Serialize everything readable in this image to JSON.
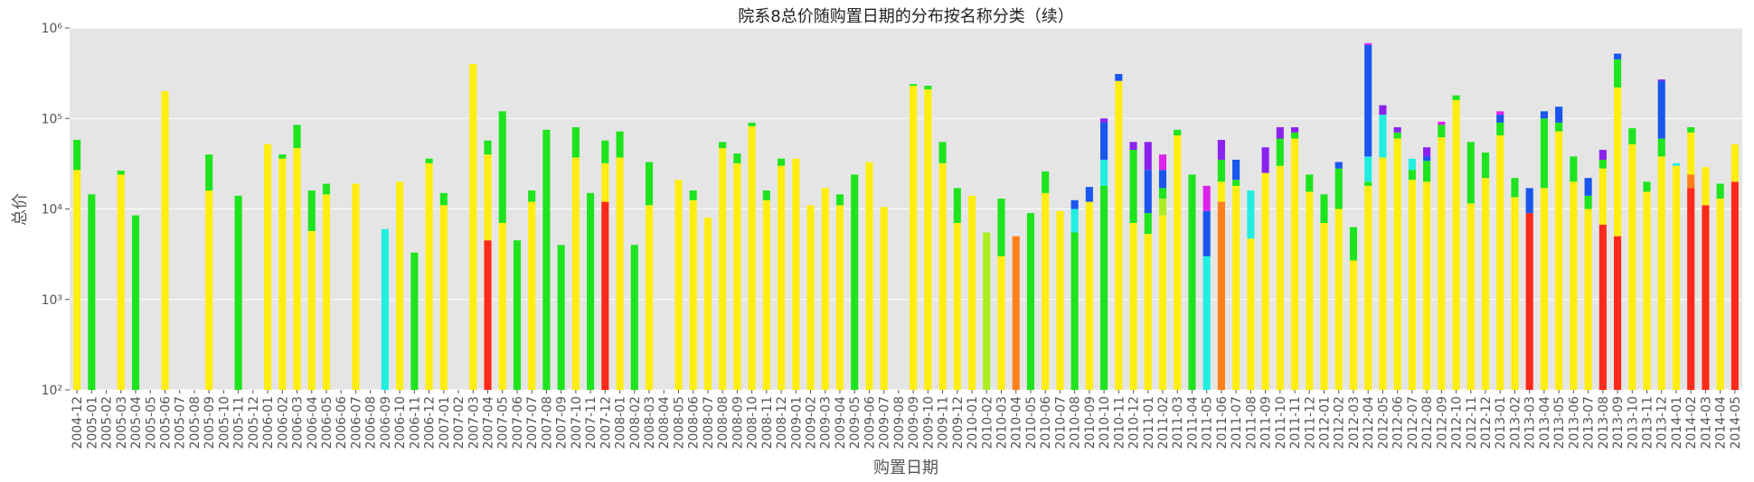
{
  "chart_data": {
    "type": "stacked_bar",
    "title": "院系8总价随购置日期的分布按名称分类（续）",
    "x_label": "购置日期",
    "y_label": "总价",
    "log_y": true,
    "grid": true,
    "ylim": [
      100,
      1000000
    ],
    "yticks": [
      {
        "value": 100,
        "label": "10²"
      },
      {
        "value": 1000,
        "label": "10³"
      },
      {
        "value": 10000,
        "label": "10⁴"
      },
      {
        "value": 100000,
        "label": "10⁵"
      },
      {
        "value": 1000000,
        "label": "10⁶"
      }
    ],
    "categories": [
      "2004-12",
      "2005-01",
      "2005-02",
      "2005-03",
      "2005-04",
      "2005-05",
      "2005-06",
      "2005-07",
      "2005-08",
      "2005-09",
      "2005-10",
      "2005-11",
      "2005-12",
      "2006-01",
      "2006-02",
      "2006-03",
      "2006-04",
      "2006-05",
      "2006-06",
      "2006-07",
      "2006-08",
      "2006-09",
      "2006-10",
      "2006-11",
      "2006-12",
      "2007-01",
      "2007-02",
      "2007-03",
      "2007-04",
      "2007-05",
      "2007-06",
      "2007-07",
      "2007-08",
      "2007-09",
      "2007-10",
      "2007-11",
      "2007-12",
      "2008-01",
      "2008-02",
      "2008-03",
      "2008-04",
      "2008-05",
      "2008-06",
      "2008-07",
      "2008-08",
      "2008-09",
      "2008-10",
      "2008-11",
      "2008-12",
      "2009-01",
      "2009-02",
      "2009-03",
      "2009-04",
      "2009-05",
      "2009-06",
      "2009-07",
      "2009-08",
      "2009-09",
      "2009-10",
      "2009-11",
      "2009-12",
      "2010-01",
      "2010-02",
      "2010-03",
      "2010-04",
      "2010-05",
      "2010-06",
      "2010-07",
      "2010-08",
      "2010-09",
      "2010-10",
      "2010-11",
      "2010-12",
      "2011-01",
      "2011-02",
      "2011-03",
      "2011-04",
      "2011-05",
      "2011-06",
      "2011-07",
      "2011-08",
      "2011-09",
      "2011-10",
      "2011-11",
      "2011-12",
      "2012-01",
      "2012-02",
      "2012-03",
      "2012-04",
      "2012-05",
      "2012-06",
      "2012-07",
      "2012-08",
      "2012-09",
      "2012-10",
      "2012-11",
      "2012-12",
      "2013-01",
      "2013-02",
      "2013-03",
      "2013-04",
      "2013-05",
      "2013-06",
      "2013-07",
      "2013-08",
      "2013-09",
      "2013-10",
      "2013-11",
      "2013-12",
      "2014-01",
      "2014-02",
      "2014-03",
      "2014-04",
      "2014-05"
    ],
    "series": [
      {
        "color": "#ff2a1a",
        "values": [
          0,
          0,
          0,
          0,
          0,
          0,
          0,
          0,
          0,
          0,
          0,
          0,
          0,
          0,
          0,
          0,
          0,
          0,
          0,
          0,
          0,
          0,
          0,
          0,
          0,
          0,
          0,
          0,
          4500,
          0,
          0,
          0,
          0,
          0,
          0,
          0,
          12000,
          0,
          0,
          0,
          0,
          0,
          0,
          0,
          0,
          0,
          0,
          0,
          0,
          0,
          0,
          0,
          0,
          0,
          0,
          0,
          0,
          0,
          0,
          0,
          0,
          0,
          0,
          0,
          0,
          0,
          0,
          0,
          0,
          0,
          0,
          0,
          0,
          0,
          0,
          0,
          0,
          0,
          0,
          0,
          0,
          0,
          0,
          0,
          0,
          0,
          0,
          0,
          0,
          0,
          0,
          0,
          0,
          0,
          0,
          0,
          0,
          0,
          0,
          9000,
          0,
          0,
          0,
          0,
          6700,
          5000,
          0,
          0,
          0,
          0,
          17000,
          11000,
          0,
          20000
        ]
      },
      {
        "color": "#ff7f1a",
        "values": [
          0,
          0,
          0,
          0,
          0,
          0,
          0,
          0,
          0,
          0,
          0,
          0,
          0,
          0,
          0,
          0,
          0,
          0,
          0,
          0,
          0,
          0,
          0,
          0,
          0,
          0,
          0,
          0,
          0,
          0,
          0,
          0,
          0,
          0,
          0,
          0,
          0,
          0,
          0,
          0,
          0,
          0,
          0,
          0,
          0,
          0,
          0,
          0,
          0,
          0,
          0,
          0,
          0,
          0,
          0,
          0,
          0,
          0,
          0,
          0,
          0,
          0,
          0,
          0,
          5000,
          0,
          0,
          0,
          0,
          0,
          0,
          0,
          0,
          0,
          0,
          0,
          0,
          0,
          12000,
          0,
          0,
          0,
          0,
          0,
          0,
          0,
          0,
          0,
          0,
          0,
          0,
          0,
          0,
          0,
          0,
          0,
          0,
          0,
          0,
          0,
          0,
          0,
          0,
          0,
          0,
          0,
          0,
          0,
          0,
          0,
          7000,
          0,
          0,
          0
        ]
      },
      {
        "color": "#ffee10",
        "values": [
          27000,
          0,
          0,
          24000,
          0,
          0,
          200000,
          0,
          0,
          16000,
          0,
          0,
          0,
          52000,
          36000,
          47000,
          5700,
          14500,
          0,
          19000,
          0,
          0,
          20000,
          0,
          32000,
          11000,
          0,
          400000,
          35500,
          7000,
          0,
          12000,
          0,
          0,
          37000,
          0,
          20000,
          37000,
          0,
          11000,
          0,
          21000,
          12500,
          8000,
          47000,
          32000,
          82000,
          12500,
          30000,
          36000,
          11000,
          17000,
          11000,
          0,
          33000,
          10500,
          0,
          230000,
          210000,
          32000,
          7000,
          14000,
          0,
          3000,
          0,
          0,
          15000,
          9500,
          0,
          12000,
          0,
          260000,
          7000,
          5300,
          8500,
          65000,
          0,
          0,
          8000,
          18000,
          4700,
          25000,
          30000,
          60000,
          15500,
          7000,
          10000,
          2700,
          18000,
          37000,
          60000,
          21000,
          20000,
          62000,
          160000,
          11500,
          22000,
          65000,
          13500,
          0,
          17000,
          72000,
          20000,
          10000,
          21300,
          215000,
          52000,
          15500,
          38000,
          30000,
          46000,
          18000,
          13000,
          32000
        ]
      },
      {
        "color": "#aaee22",
        "values": [
          0,
          0,
          0,
          0,
          0,
          0,
          0,
          0,
          0,
          0,
          0,
          0,
          0,
          0,
          0,
          0,
          0,
          0,
          0,
          0,
          0,
          0,
          0,
          0,
          0,
          0,
          0,
          0,
          0,
          0,
          0,
          0,
          0,
          0,
          0,
          0,
          0,
          0,
          0,
          0,
          0,
          0,
          0,
          0,
          0,
          0,
          0,
          0,
          0,
          0,
          0,
          0,
          0,
          0,
          0,
          0,
          0,
          0,
          0,
          0,
          0,
          0,
          5500,
          0,
          0,
          0,
          0,
          0,
          0,
          0,
          0,
          0,
          0,
          0,
          4500,
          0,
          0,
          0,
          0,
          0,
          0,
          0,
          0,
          0,
          0,
          0,
          0,
          0,
          0,
          0,
          0,
          0,
          0,
          0,
          0,
          0,
          0,
          0,
          0,
          0,
          0,
          0,
          0,
          0,
          0,
          0,
          0,
          0,
          0,
          0,
          0,
          0,
          0,
          0
        ]
      },
      {
        "color": "#1ee41e",
        "values": [
          31000,
          14500,
          0,
          2500,
          8500,
          0,
          0,
          0,
          0,
          24000,
          0,
          14000,
          0,
          0,
          4000,
          38000,
          10300,
          4500,
          0,
          0,
          0,
          0,
          0,
          3300,
          4000,
          4000,
          0,
          0,
          17000,
          113000,
          4500,
          4000,
          75000,
          4000,
          43000,
          15000,
          25000,
          35000,
          4000,
          22000,
          0,
          0,
          3500,
          0,
          8000,
          9000,
          8000,
          3500,
          6000,
          0,
          0,
          0,
          3500,
          24000,
          0,
          0,
          0,
          10000,
          20000,
          23000,
          10000,
          0,
          0,
          10000,
          0,
          9000,
          11000,
          0,
          5500,
          0,
          18000,
          0,
          38000,
          3700,
          4000,
          10000,
          24000,
          0,
          15000,
          3000,
          0,
          0,
          30000,
          10000,
          8500,
          7500,
          18000,
          3600,
          2000,
          0,
          10000,
          6000,
          14000,
          23000,
          20000,
          43500,
          20000,
          25000,
          8500,
          0,
          83000,
          18000,
          18000,
          4000,
          7000,
          230000,
          26000,
          4500,
          22000,
          0,
          10000,
          0,
          6000,
          0
        ]
      },
      {
        "color": "#22eee0",
        "values": [
          0,
          0,
          0,
          0,
          0,
          0,
          0,
          0,
          0,
          0,
          0,
          0,
          0,
          0,
          0,
          0,
          0,
          0,
          0,
          0,
          0,
          6000,
          0,
          0,
          0,
          0,
          0,
          0,
          0,
          0,
          0,
          0,
          0,
          0,
          0,
          0,
          0,
          0,
          0,
          0,
          0,
          0,
          0,
          0,
          0,
          0,
          0,
          0,
          0,
          0,
          0,
          0,
          0,
          0,
          0,
          0,
          0,
          0,
          0,
          0,
          0,
          0,
          0,
          0,
          0,
          0,
          0,
          0,
          4500,
          0,
          17000,
          0,
          0,
          0,
          0,
          0,
          0,
          3000,
          0,
          0,
          11300,
          0,
          0,
          0,
          0,
          0,
          0,
          0,
          18000,
          73000,
          0,
          9000,
          0,
          0,
          0,
          0,
          0,
          0,
          0,
          0,
          0,
          0,
          0,
          0,
          0,
          0,
          0,
          0,
          0,
          2000,
          0,
          0,
          0,
          0
        ]
      },
      {
        "color": "#1a55ee",
        "values": [
          0,
          0,
          0,
          0,
          0,
          0,
          0,
          0,
          0,
          0,
          0,
          0,
          0,
          0,
          0,
          0,
          0,
          0,
          0,
          0,
          0,
          0,
          0,
          0,
          0,
          0,
          0,
          0,
          0,
          0,
          0,
          0,
          0,
          0,
          0,
          0,
          0,
          0,
          0,
          0,
          0,
          0,
          0,
          0,
          0,
          0,
          0,
          0,
          0,
          0,
          0,
          0,
          0,
          0,
          0,
          0,
          0,
          0,
          0,
          0,
          0,
          0,
          0,
          0,
          0,
          0,
          0,
          0,
          2500,
          5500,
          55000,
          50000,
          0,
          18000,
          10000,
          0,
          0,
          6500,
          0,
          14000,
          0,
          0,
          0,
          0,
          0,
          0,
          5000,
          0,
          612000,
          0,
          0,
          0,
          4000,
          0,
          0,
          0,
          0,
          20000,
          0,
          8000,
          20000,
          45000,
          0,
          8000,
          0,
          70000,
          0,
          0,
          200000,
          0,
          0,
          0,
          0,
          0
        ]
      },
      {
        "color": "#8a22ee",
        "values": [
          0,
          0,
          0,
          0,
          0,
          0,
          0,
          0,
          0,
          0,
          0,
          0,
          0,
          0,
          0,
          0,
          0,
          0,
          0,
          0,
          0,
          0,
          0,
          0,
          0,
          0,
          0,
          0,
          0,
          0,
          0,
          0,
          0,
          0,
          0,
          0,
          0,
          0,
          0,
          0,
          0,
          0,
          0,
          0,
          0,
          0,
          0,
          0,
          0,
          0,
          0,
          0,
          0,
          0,
          0,
          0,
          0,
          0,
          0,
          0,
          0,
          0,
          0,
          0,
          0,
          0,
          0,
          0,
          0,
          0,
          10000,
          0,
          10000,
          28000,
          0,
          0,
          0,
          0,
          23000,
          0,
          0,
          23000,
          20000,
          10000,
          0,
          0,
          0,
          0,
          0,
          30000,
          10000,
          0,
          10000,
          0,
          0,
          0,
          0,
          0,
          0,
          0,
          0,
          0,
          0,
          0,
          10000,
          0,
          0,
          0,
          10000,
          0,
          0,
          0,
          0,
          0
        ]
      },
      {
        "color": "#dd22ee",
        "values": [
          0,
          0,
          0,
          0,
          0,
          0,
          0,
          0,
          0,
          0,
          0,
          0,
          0,
          0,
          0,
          0,
          0,
          0,
          0,
          0,
          0,
          0,
          0,
          0,
          0,
          0,
          0,
          0,
          0,
          0,
          0,
          0,
          0,
          0,
          0,
          0,
          0,
          0,
          0,
          0,
          0,
          0,
          0,
          0,
          0,
          0,
          0,
          0,
          0,
          0,
          0,
          0,
          0,
          0,
          0,
          0,
          0,
          0,
          0,
          0,
          0,
          0,
          0,
          0,
          0,
          0,
          0,
          0,
          0,
          0,
          0,
          0,
          0,
          0,
          13000,
          0,
          0,
          8500,
          0,
          0,
          0,
          0,
          0,
          0,
          0,
          0,
          0,
          0,
          30000,
          0,
          0,
          0,
          0,
          7000,
          0,
          0,
          0,
          10000,
          0,
          0,
          0,
          0,
          0,
          0,
          0,
          0,
          0,
          0,
          0,
          0,
          0,
          0,
          0,
          0
        ]
      }
    ]
  }
}
